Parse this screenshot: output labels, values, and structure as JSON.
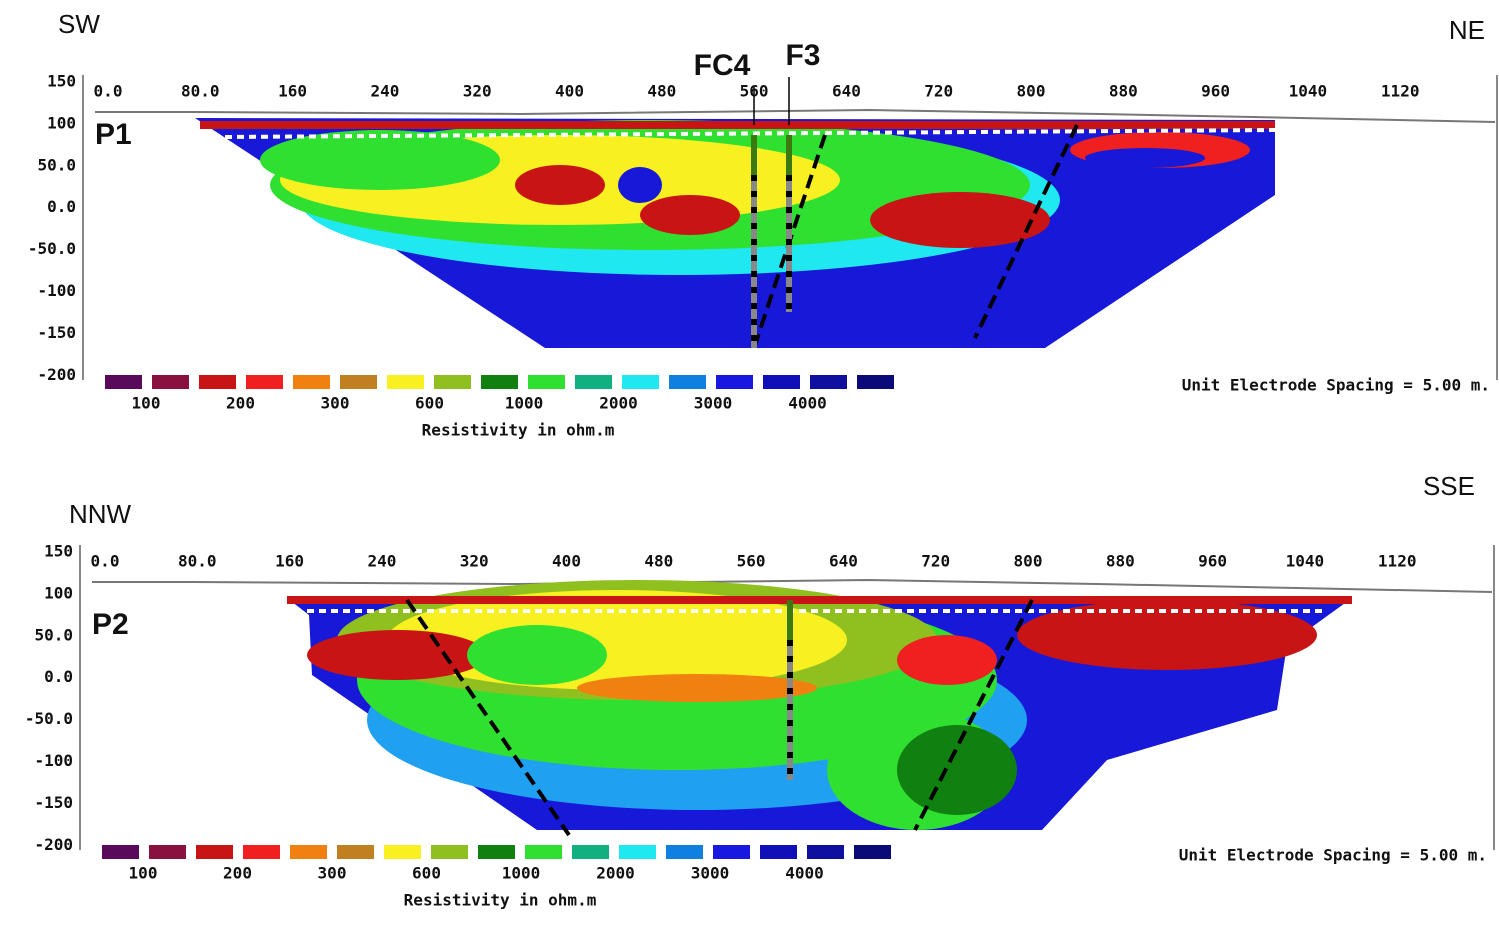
{
  "panels": [
    {
      "label": "P1",
      "left_direction": "SW",
      "right_direction": "NE",
      "boreholes": [
        "FC4",
        "F3"
      ],
      "x_axis_labels": [
        "0.0",
        "80.0",
        "160",
        "240",
        "320",
        "400",
        "480",
        "560",
        "640",
        "720",
        "800",
        "880",
        "960",
        "1040",
        "1120"
      ],
      "y_axis_labels": [
        "150",
        "100",
        "50.0",
        "0.0",
        "-50.0",
        "-100",
        "-150",
        "-200"
      ],
      "legend_labels": [
        "100",
        "200",
        "300",
        "600",
        "1000",
        "2000",
        "3000",
        "4000"
      ],
      "legend_title": "Resistivity in ohm.m",
      "electrode_spacing": "Unit Electrode Spacing = 5.00 m."
    },
    {
      "label": "P2",
      "left_direction": "NNW",
      "right_direction": "SSE",
      "x_axis_labels": [
        "0.0",
        "80.0",
        "160",
        "240",
        "320",
        "400",
        "480",
        "560",
        "640",
        "720",
        "800",
        "880",
        "960",
        "1040",
        "1120"
      ],
      "y_axis_labels": [
        "150",
        "100",
        "50.0",
        "0.0",
        "-50.0",
        "-100",
        "-150",
        "-200"
      ],
      "legend_labels": [
        "100",
        "200",
        "300",
        "600",
        "1000",
        "2000",
        "3000",
        "4000"
      ],
      "legend_title": "Resistivity in ohm.m",
      "electrode_spacing": "Unit Electrode Spacing = 5.00 m."
    }
  ]
}
